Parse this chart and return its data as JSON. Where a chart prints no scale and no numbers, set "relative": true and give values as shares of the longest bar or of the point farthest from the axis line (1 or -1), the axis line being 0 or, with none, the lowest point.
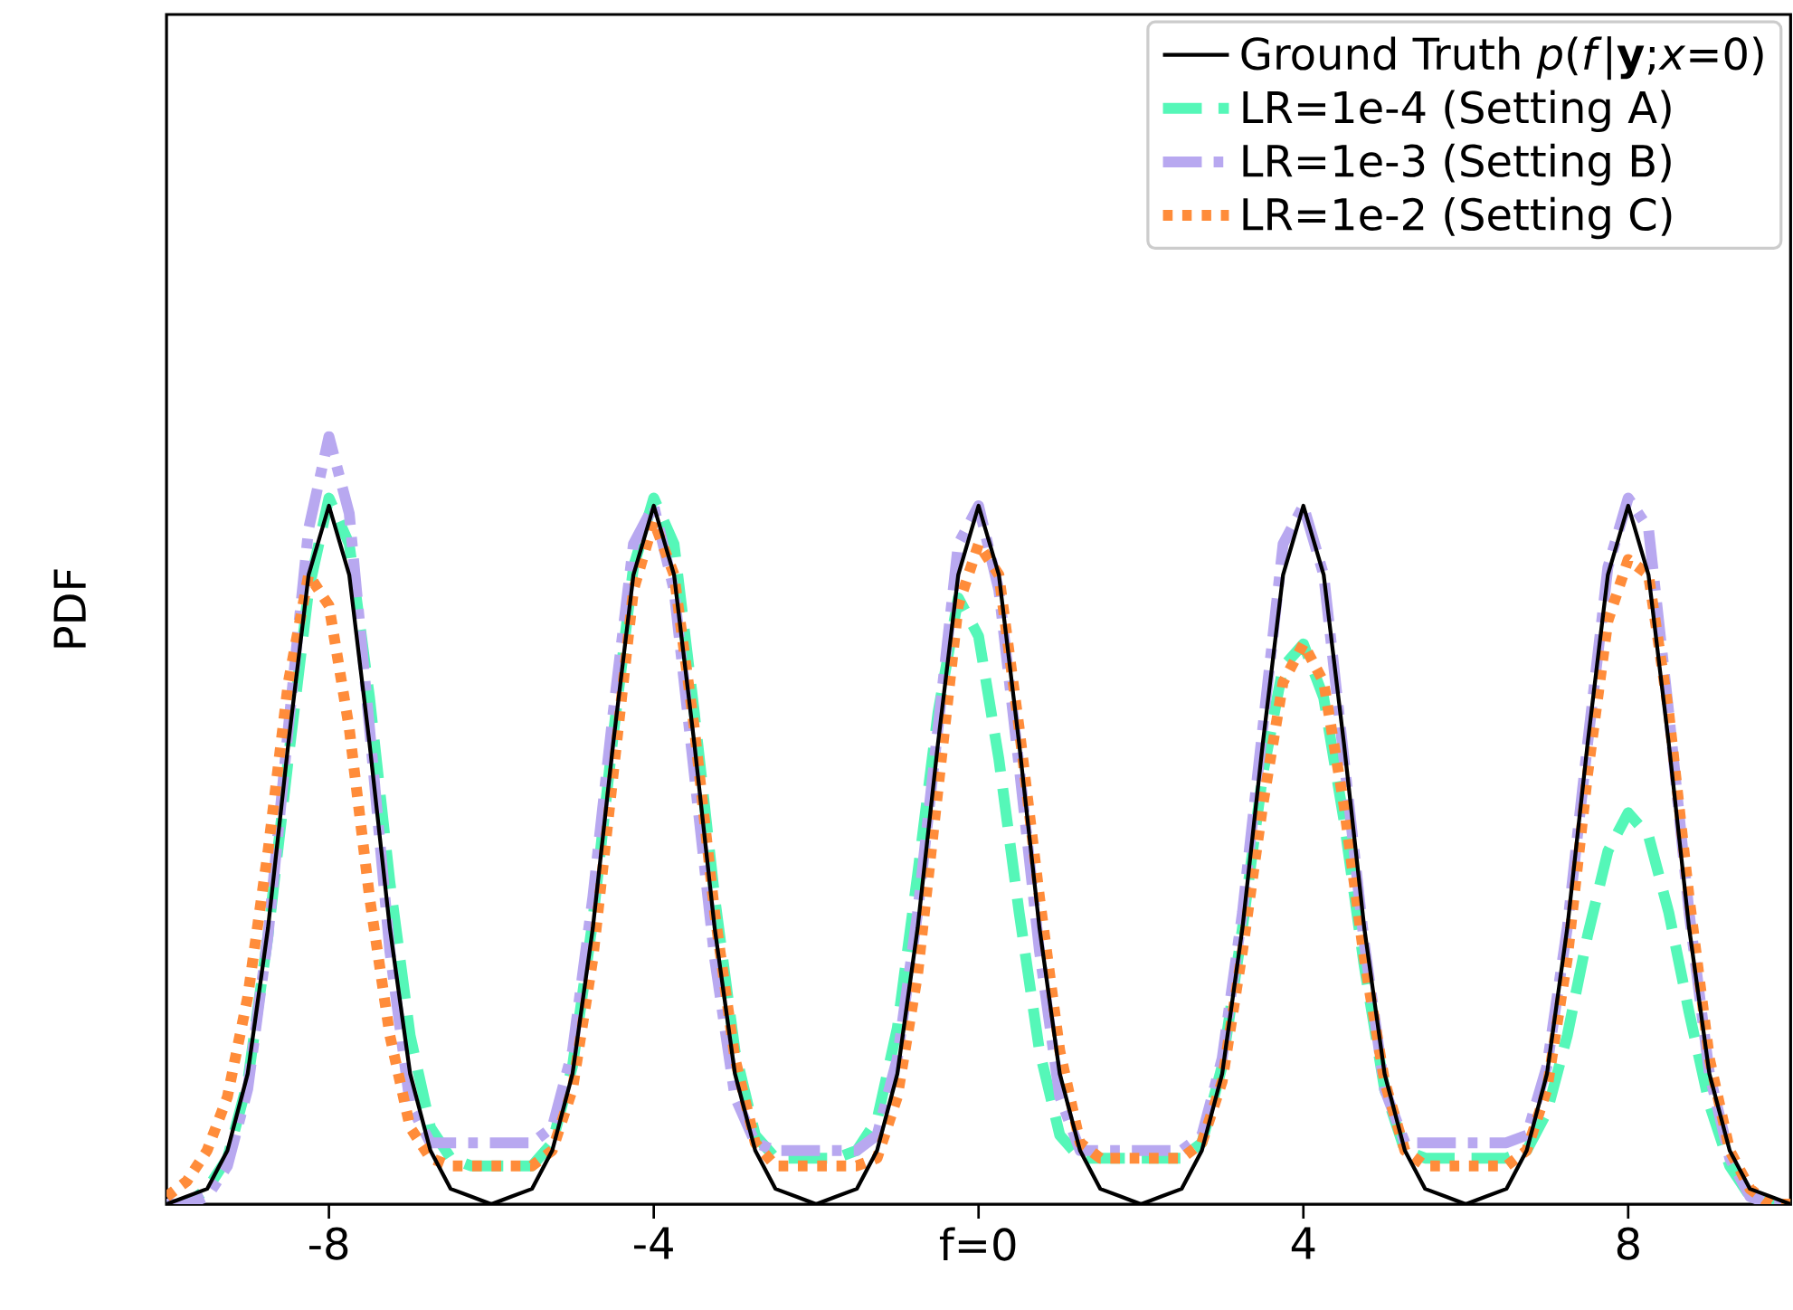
{
  "chart_data": {
    "type": "line",
    "ylabel": "PDF",
    "relative": true,
    "legend": "top right",
    "grid": false,
    "marker": "none",
    "xlim": [
      -10,
      10
    ],
    "xticks": [
      -8,
      -4,
      {
        "value": 0,
        "label": "f=0"
      },
      4,
      8
    ],
    "x": [
      -10,
      -9.75,
      -9.5,
      -9.25,
      -9,
      -8.75,
      -8.5,
      -8.25,
      -8,
      -7.75,
      -7.5,
      -7.25,
      -7,
      -6.75,
      -6.5,
      -6.25,
      -6,
      -5.75,
      -5.5,
      -5.25,
      -5,
      -4.75,
      -4.5,
      -4.25,
      -4,
      -3.75,
      -3.5,
      -3.25,
      -3,
      -2.75,
      -2.5,
      -2.25,
      -2,
      -1.75,
      -1.5,
      -1.25,
      -1,
      -0.75,
      -0.5,
      -0.25,
      0,
      0.25,
      0.5,
      0.75,
      1,
      1.25,
      1.5,
      1.75,
      2,
      2.25,
      2.5,
      2.75,
      3,
      3.25,
      3.5,
      3.75,
      4,
      4.25,
      4.5,
      4.75,
      5,
      5.25,
      5.5,
      5.75,
      6,
      6.25,
      6.5,
      6.75,
      7,
      7.25,
      7.5,
      7.75,
      8,
      8.25,
      8.5,
      8.75,
      9,
      9.25,
      9.5,
      9.75,
      10
    ],
    "series": [
      {
        "name": "Ground Truth *p*(*f*|**y**;*x*=0)",
        "color": "#000000",
        "line_style": "solid",
        "values": [
          0.0,
          0.01,
          0.02,
          0.07,
          0.17,
          0.36,
          0.6,
          0.82,
          0.91,
          0.82,
          0.6,
          0.36,
          0.17,
          0.07,
          0.02,
          0.01,
          0.0,
          0.01,
          0.02,
          0.07,
          0.17,
          0.36,
          0.6,
          0.82,
          0.91,
          0.82,
          0.6,
          0.36,
          0.17,
          0.07,
          0.02,
          0.01,
          0.0,
          0.01,
          0.02,
          0.07,
          0.17,
          0.36,
          0.6,
          0.82,
          0.91,
          0.82,
          0.6,
          0.36,
          0.17,
          0.07,
          0.02,
          0.01,
          0.0,
          0.01,
          0.02,
          0.07,
          0.17,
          0.36,
          0.6,
          0.82,
          0.91,
          0.82,
          0.6,
          0.36,
          0.17,
          0.07,
          0.02,
          0.01,
          0.0,
          0.01,
          0.02,
          0.07,
          0.17,
          0.36,
          0.6,
          0.82,
          0.91,
          0.82,
          0.6,
          0.36,
          0.17,
          0.07,
          0.02,
          0.01,
          0.0
        ]
      },
      {
        "name": "LR=1e-4 (Setting A)",
        "color": "#55f7b8",
        "line_style": "dashed",
        "values": [
          0.0,
          0.0,
          0.02,
          0.06,
          0.16,
          0.35,
          0.58,
          0.8,
          0.92,
          0.86,
          0.66,
          0.42,
          0.22,
          0.1,
          0.06,
          0.05,
          0.05,
          0.05,
          0.05,
          0.08,
          0.18,
          0.37,
          0.61,
          0.83,
          0.92,
          0.86,
          0.64,
          0.4,
          0.2,
          0.09,
          0.06,
          0.06,
          0.06,
          0.06,
          0.07,
          0.11,
          0.23,
          0.43,
          0.64,
          0.79,
          0.74,
          0.58,
          0.38,
          0.2,
          0.09,
          0.06,
          0.06,
          0.06,
          0.06,
          0.06,
          0.06,
          0.08,
          0.18,
          0.36,
          0.56,
          0.7,
          0.73,
          0.66,
          0.5,
          0.31,
          0.15,
          0.07,
          0.06,
          0.06,
          0.06,
          0.06,
          0.06,
          0.07,
          0.12,
          0.22,
          0.35,
          0.46,
          0.51,
          0.48,
          0.38,
          0.25,
          0.13,
          0.05,
          0.01,
          0.0,
          0.0
        ]
      },
      {
        "name": "LR=1e-3 (Setting B)",
        "color": "#b8a8f0",
        "line_style": "dashdot",
        "values": [
          0.0,
          0.0,
          0.01,
          0.05,
          0.15,
          0.35,
          0.62,
          0.88,
          1.0,
          0.9,
          0.62,
          0.33,
          0.13,
          0.08,
          0.08,
          0.08,
          0.08,
          0.08,
          0.08,
          0.1,
          0.2,
          0.4,
          0.64,
          0.86,
          0.91,
          0.8,
          0.56,
          0.32,
          0.14,
          0.08,
          0.07,
          0.07,
          0.07,
          0.07,
          0.07,
          0.09,
          0.19,
          0.38,
          0.62,
          0.86,
          0.91,
          0.8,
          0.57,
          0.33,
          0.14,
          0.07,
          0.07,
          0.07,
          0.07,
          0.07,
          0.07,
          0.09,
          0.19,
          0.38,
          0.62,
          0.86,
          0.91,
          0.82,
          0.58,
          0.34,
          0.15,
          0.08,
          0.08,
          0.08,
          0.08,
          0.08,
          0.08,
          0.09,
          0.18,
          0.36,
          0.6,
          0.83,
          0.92,
          0.88,
          0.64,
          0.38,
          0.17,
          0.06,
          0.01,
          0.0,
          0.0
        ]
      },
      {
        "name": "LR=1e-2 (Setting C)",
        "color": "#ff8c3a",
        "line_style": "dotted",
        "values": [
          0.01,
          0.03,
          0.07,
          0.14,
          0.27,
          0.46,
          0.68,
          0.82,
          0.78,
          0.62,
          0.4,
          0.22,
          0.1,
          0.06,
          0.05,
          0.05,
          0.05,
          0.05,
          0.05,
          0.07,
          0.15,
          0.32,
          0.56,
          0.8,
          0.89,
          0.82,
          0.62,
          0.38,
          0.19,
          0.08,
          0.05,
          0.05,
          0.05,
          0.05,
          0.05,
          0.06,
          0.14,
          0.3,
          0.54,
          0.78,
          0.86,
          0.82,
          0.62,
          0.4,
          0.2,
          0.08,
          0.06,
          0.06,
          0.06,
          0.06,
          0.06,
          0.08,
          0.16,
          0.33,
          0.52,
          0.68,
          0.73,
          0.68,
          0.52,
          0.32,
          0.16,
          0.07,
          0.05,
          0.05,
          0.05,
          0.05,
          0.05,
          0.07,
          0.15,
          0.32,
          0.56,
          0.76,
          0.84,
          0.82,
          0.64,
          0.4,
          0.19,
          0.07,
          0.02,
          0.0,
          0.0
        ]
      }
    ]
  }
}
